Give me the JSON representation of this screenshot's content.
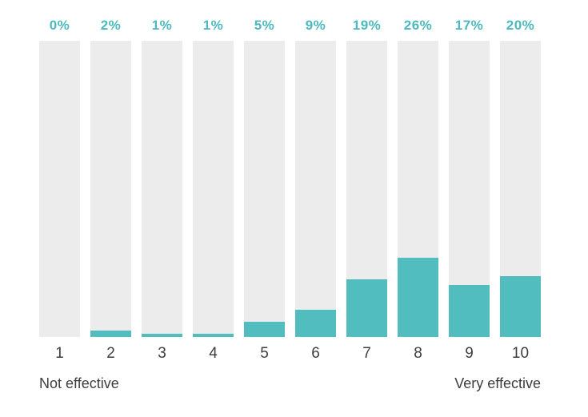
{
  "chart_data": {
    "type": "bar",
    "categories": [
      "1",
      "2",
      "3",
      "4",
      "5",
      "6",
      "7",
      "8",
      "9",
      "10"
    ],
    "values": [
      0,
      2,
      1,
      1,
      5,
      9,
      19,
      26,
      17,
      20
    ],
    "value_labels": [
      "0%",
      "2%",
      "1%",
      "1%",
      "5%",
      "9%",
      "19%",
      "26%",
      "17%",
      "20%"
    ],
    "title": "",
    "xlabel_left": "Not effective",
    "xlabel_right": "Very effective",
    "ylabel": "",
    "ylim": [
      0,
      100
    ],
    "grid": false,
    "legend": "none",
    "colors": {
      "bar_fill": "#52bdbf",
      "bar_track": "#ececec",
      "value_label": "#4cb9bc",
      "tick_label": "#3d3d3d",
      "axis_label": "#3d3d3d",
      "background": "#ffffff"
    }
  }
}
